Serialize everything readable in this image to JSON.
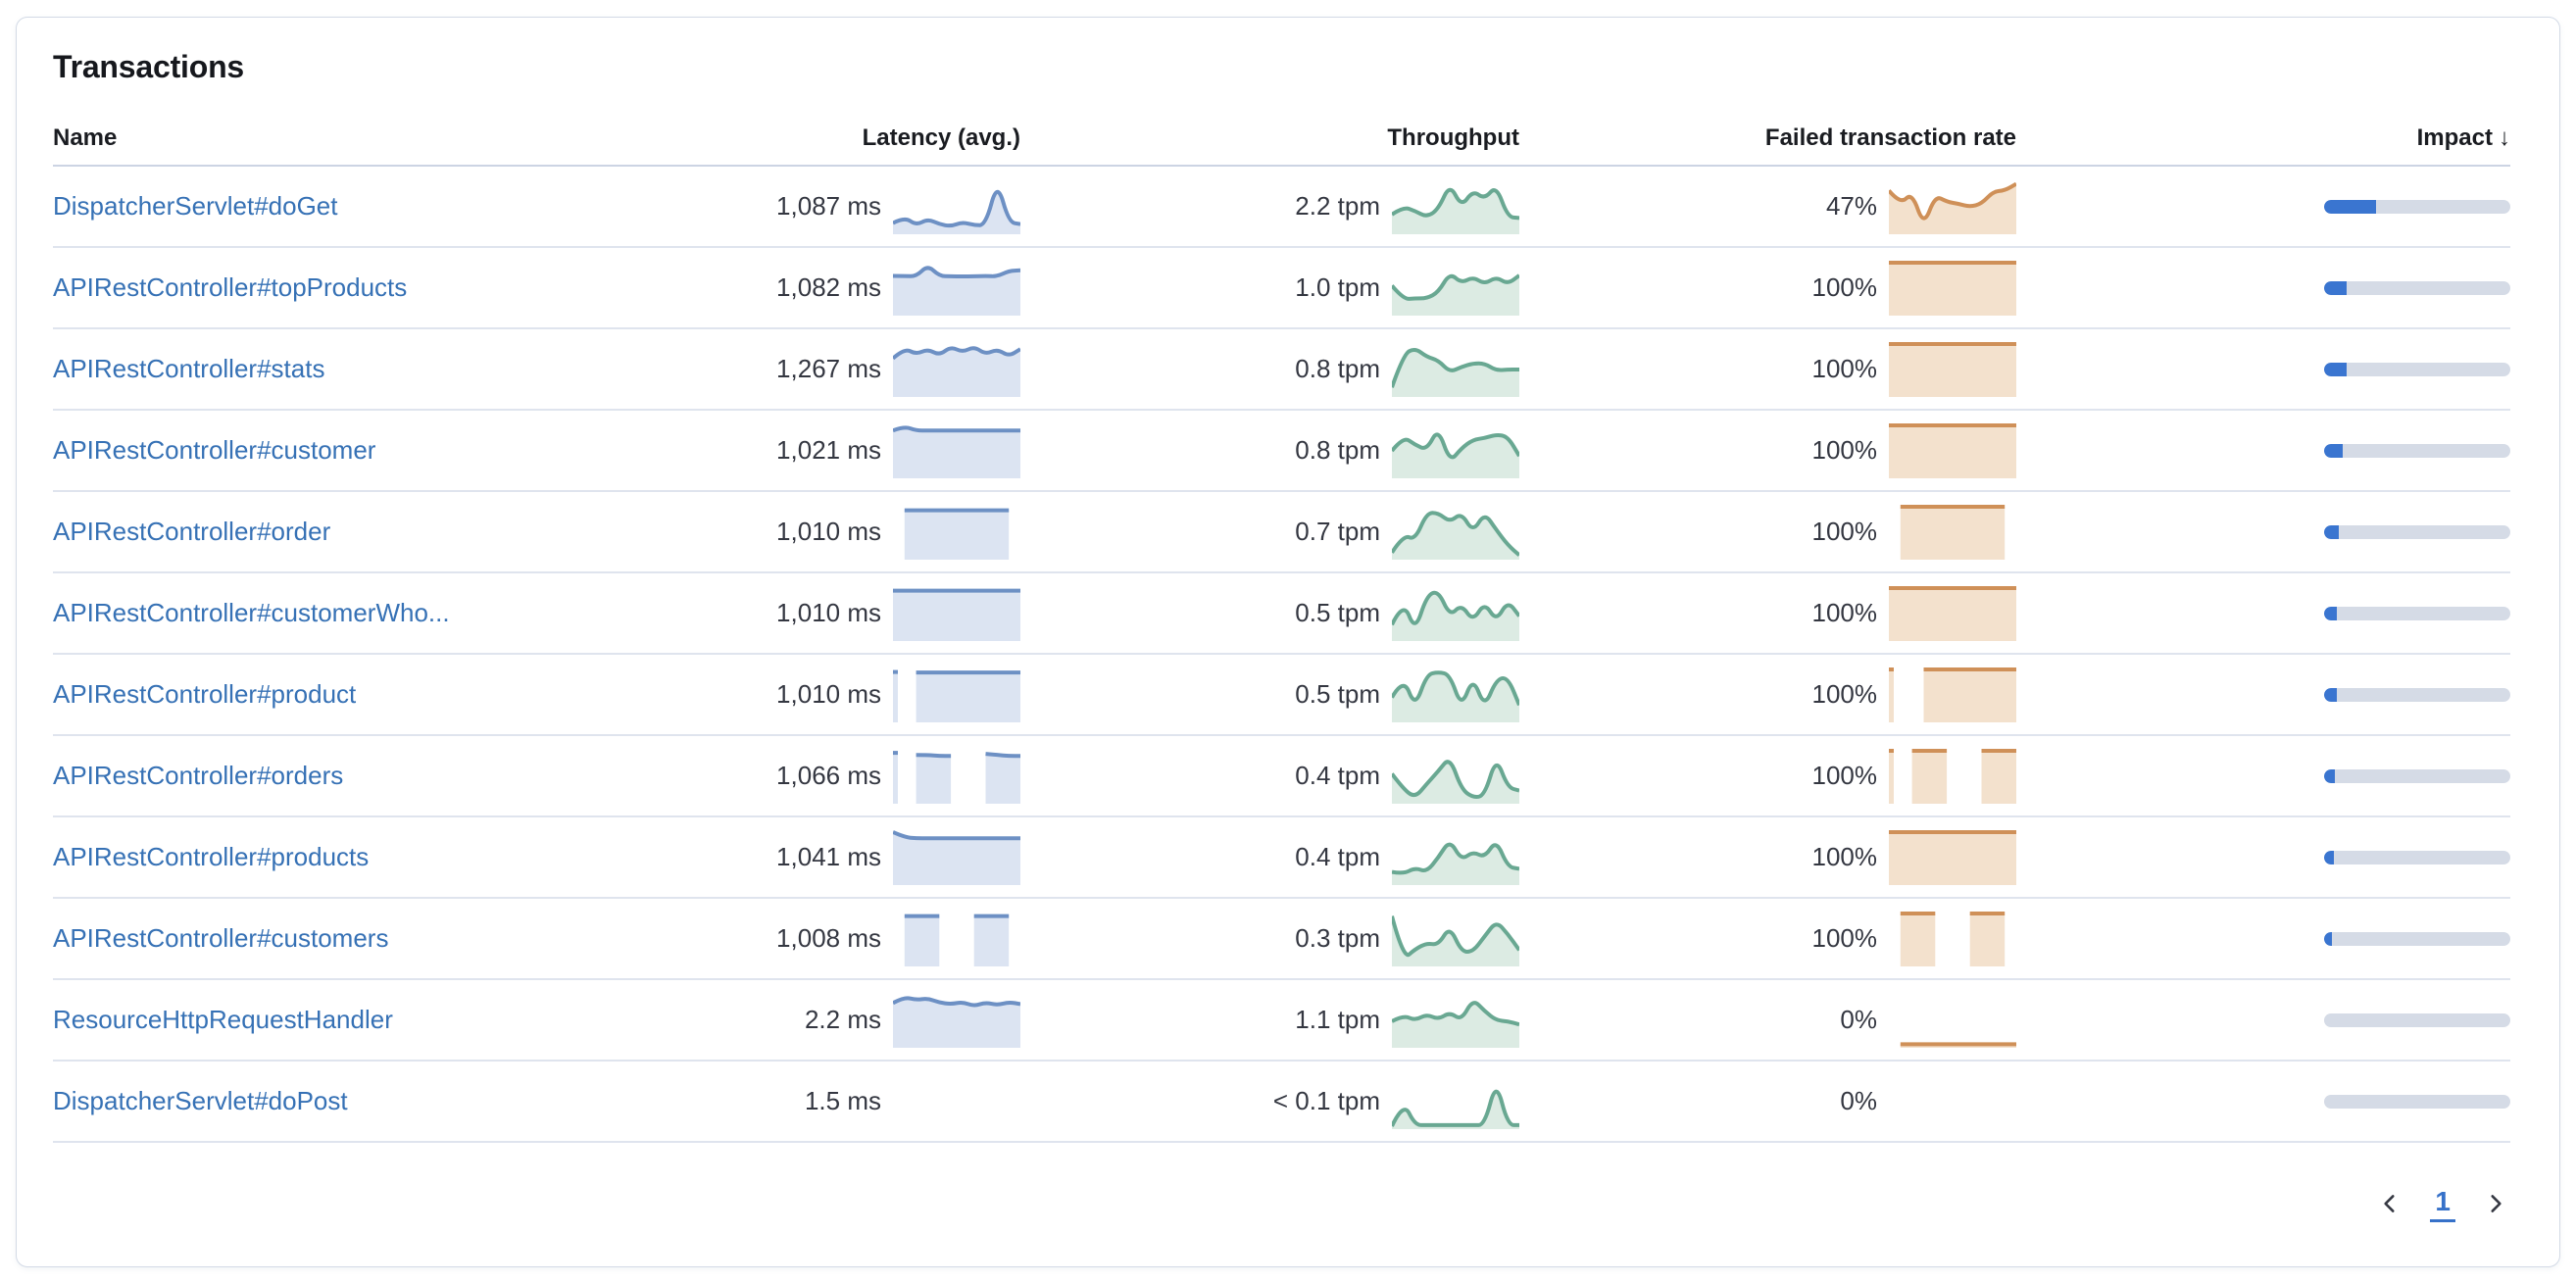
{
  "card": {
    "title": "Transactions"
  },
  "table": {
    "columns": {
      "name": "Name",
      "latency": "Latency (avg.)",
      "throughput": "Throughput",
      "failed": "Failed transaction rate",
      "impact": "Impact"
    },
    "sort": {
      "column": "impact",
      "direction": "desc",
      "icon": "arrow-down",
      "glyph": "↓"
    }
  },
  "colors": {
    "link": "#3671b5",
    "latency_line": "#6d90c4",
    "latency_fill": "#dce4f2",
    "throughput_line": "#69a892",
    "throughput_fill": "#dcebe3",
    "failed_line": "#cf9058",
    "failed_fill": "#f3e1cd",
    "impact_fill": "#3a75d0",
    "impact_track": "#d5dbe6"
  },
  "rows": [
    {
      "name": "DispatcherServlet#doGet",
      "latency": "1,087 ms",
      "throughput": "2.2 tpm",
      "failed": "47%",
      "impact_pct": 28,
      "latency_spark": [
        0.18,
        0.3,
        0.14,
        0.26,
        0.16,
        0.12,
        0.2,
        0.14,
        0.14,
        1.0,
        0.2,
        0.16
      ],
      "throughput_spark": [
        0.35,
        0.5,
        0.42,
        0.3,
        0.45,
        0.95,
        0.5,
        0.82,
        0.65,
        0.92,
        0.3,
        0.28
      ],
      "failed_spark": [
        0.82,
        0.55,
        0.78,
        0.12,
        0.72,
        0.6,
        0.56,
        0.5,
        0.56,
        0.8,
        0.82,
        0.95
      ]
    },
    {
      "name": "APIRestController#topProducts",
      "latency": "1,082 ms",
      "throughput": "1.0 tpm",
      "failed": "100%",
      "impact_pct": 12,
      "latency_spark": [
        0.74,
        0.74,
        0.73,
        0.95,
        0.74,
        0.73,
        0.73,
        0.73,
        0.74,
        0.73,
        0.84,
        0.85
      ],
      "throughput_spark": [
        0.55,
        0.28,
        0.3,
        0.3,
        0.42,
        0.8,
        0.6,
        0.72,
        0.58,
        0.72,
        0.58,
        0.75
      ],
      "failed_spark": [
        1,
        1,
        1,
        1,
        1,
        1,
        1,
        1,
        1,
        1,
        1,
        1
      ]
    },
    {
      "name": "APIRestController#stats",
      "latency": "1,267 ms",
      "throughput": "0.8 tpm",
      "failed": "100%",
      "impact_pct": 12,
      "latency_spark": [
        0.72,
        0.92,
        0.8,
        0.9,
        0.78,
        0.95,
        0.84,
        0.95,
        0.8,
        0.9,
        0.76,
        0.9
      ],
      "throughput_spark": [
        0.15,
        0.8,
        0.92,
        0.75,
        0.68,
        0.45,
        0.55,
        0.62,
        0.62,
        0.48,
        0.5,
        0.5
      ],
      "failed_spark": [
        1,
        1,
        1,
        1,
        1,
        1,
        1,
        1,
        1,
        1,
        1,
        1
      ]
    },
    {
      "name": "APIRestController#customer",
      "latency": "1,021 ms",
      "throughput": "0.8 tpm",
      "failed": "100%",
      "impact_pct": 10,
      "latency_spark": [
        0.9,
        0.98,
        0.9,
        0.9,
        0.9,
        0.9,
        0.9,
        0.9,
        0.9,
        0.9,
        0.9,
        0.9
      ],
      "throughput_spark": [
        0.5,
        0.78,
        0.62,
        0.52,
        0.95,
        0.28,
        0.55,
        0.72,
        0.75,
        0.82,
        0.78,
        0.4
      ],
      "failed_spark": [
        1,
        1,
        1,
        1,
        1,
        1,
        1,
        1,
        1,
        1,
        1,
        1
      ]
    },
    {
      "name": "APIRestController#order",
      "latency": "1,010 ms",
      "throughput": "0.7 tpm",
      "failed": "100%",
      "impact_pct": 8,
      "latency_spark": [
        null,
        0.93,
        0.93,
        0.93,
        0.93,
        0.93,
        0.93,
        0.93,
        0.93,
        0.93,
        0.93,
        null
      ],
      "throughput_spark": [
        0.1,
        0.45,
        0.35,
        0.88,
        0.88,
        0.7,
        0.88,
        0.5,
        0.88,
        0.55,
        0.25,
        0.05
      ],
      "failed_spark": [
        null,
        1,
        1,
        1,
        1,
        1,
        1,
        1,
        1,
        1,
        1,
        null
      ]
    },
    {
      "name": "APIRestController#customerWho...",
      "latency": "1,010 ms",
      "throughput": "0.5 tpm",
      "failed": "100%",
      "impact_pct": 7,
      "latency_spark": [
        0.95,
        0.95,
        0.95,
        0.95,
        0.95,
        0.95,
        0.95,
        0.95,
        0.95,
        0.95,
        0.95,
        0.95
      ],
      "throughput_spark": [
        0.28,
        0.75,
        0.15,
        0.85,
        0.95,
        0.45,
        0.68,
        0.35,
        0.72,
        0.35,
        0.75,
        0.45
      ],
      "failed_spark": [
        1,
        1,
        1,
        1,
        1,
        1,
        1,
        1,
        1,
        1,
        1,
        1
      ]
    },
    {
      "name": "APIRestController#product",
      "latency": "1,010 ms",
      "throughput": "0.5 tpm",
      "failed": "100%",
      "impact_pct": 7,
      "latency_spark": [
        0.95,
        null,
        0.94,
        0.94,
        0.94,
        0.94,
        0.94,
        0.94,
        0.94,
        0.94,
        0.94,
        0.94
      ],
      "throughput_spark": [
        0.45,
        0.85,
        0.25,
        0.9,
        0.95,
        0.9,
        0.25,
        0.85,
        0.25,
        0.8,
        0.85,
        0.3
      ],
      "failed_spark": [
        1,
        null,
        null,
        1,
        1,
        1,
        1,
        1,
        1,
        1,
        1,
        1
      ]
    },
    {
      "name": "APIRestController#orders",
      "latency": "1,066 ms",
      "throughput": "0.4 tpm",
      "failed": "100%",
      "impact_pct": 6,
      "latency_spark": [
        0.96,
        null,
        0.92,
        0.92,
        0.9,
        0.9,
        null,
        null,
        0.94,
        0.92,
        0.9,
        0.9
      ],
      "throughput_spark": [
        0.55,
        0.25,
        0.08,
        0.35,
        0.6,
        0.88,
        0.25,
        0.08,
        0.12,
        0.88,
        0.28,
        0.22
      ],
      "failed_spark": [
        1,
        null,
        1,
        1,
        1,
        1,
        null,
        null,
        1,
        1,
        1,
        1
      ]
    },
    {
      "name": "APIRestController#products",
      "latency": "1,041 ms",
      "throughput": "0.4 tpm",
      "failed": "100%",
      "impact_pct": 5,
      "latency_spark": [
        1.0,
        0.9,
        0.88,
        0.88,
        0.88,
        0.88,
        0.88,
        0.88,
        0.88,
        0.88,
        0.88,
        0.88
      ],
      "throughput_spark": [
        0.22,
        0.18,
        0.3,
        0.22,
        0.5,
        0.85,
        0.45,
        0.62,
        0.5,
        0.85,
        0.32,
        0.28
      ],
      "failed_spark": [
        1,
        1,
        1,
        1,
        1,
        1,
        1,
        1,
        1,
        1,
        1,
        1
      ]
    },
    {
      "name": "APIRestController#customers",
      "latency": "1,008 ms",
      "throughput": "0.3 tpm",
      "failed": "100%",
      "impact_pct": 4,
      "latency_spark": [
        null,
        0.95,
        0.95,
        0.95,
        0.95,
        null,
        null,
        0.95,
        0.95,
        0.95,
        0.95,
        null
      ],
      "throughput_spark": [
        0.95,
        0.1,
        0.3,
        0.42,
        0.38,
        0.75,
        0.25,
        0.25,
        0.55,
        0.85,
        0.6,
        0.28
      ],
      "failed_spark": [
        null,
        1,
        1,
        1,
        1,
        null,
        null,
        1,
        1,
        1,
        1,
        null
      ]
    },
    {
      "name": "ResourceHttpRequestHandler",
      "latency": "2.2 ms",
      "throughput": "1.1 tpm",
      "failed": "0%",
      "impact_pct": 0,
      "latency_spark": [
        0.84,
        0.96,
        0.9,
        0.93,
        0.85,
        0.82,
        0.86,
        0.78,
        0.85,
        0.8,
        0.86,
        0.82
      ],
      "throughput_spark": [
        0.48,
        0.6,
        0.5,
        0.62,
        0.52,
        0.66,
        0.5,
        0.92,
        0.68,
        0.5,
        0.48,
        0.42
      ],
      "failed_spark": [
        null,
        0.03,
        0.03,
        0.03,
        0.03,
        0.03,
        0.03,
        0.03,
        0.03,
        0.03,
        0.03,
        0.03
      ]
    },
    {
      "name": "DispatcherServlet#doPost",
      "latency": "1.5 ms",
      "throughput": "< 0.1 tpm",
      "failed": "0%",
      "impact_pct": 0,
      "latency_spark": [],
      "throughput_spark": [
        0.02,
        0.5,
        0.04,
        0.04,
        0.04,
        0.04,
        0.04,
        0.04,
        0.04,
        0.92,
        0.04,
        0.04
      ],
      "failed_spark": []
    }
  ],
  "pagination": {
    "prev_icon": "chevron-left",
    "page": "1",
    "next_icon": "chevron-right"
  }
}
